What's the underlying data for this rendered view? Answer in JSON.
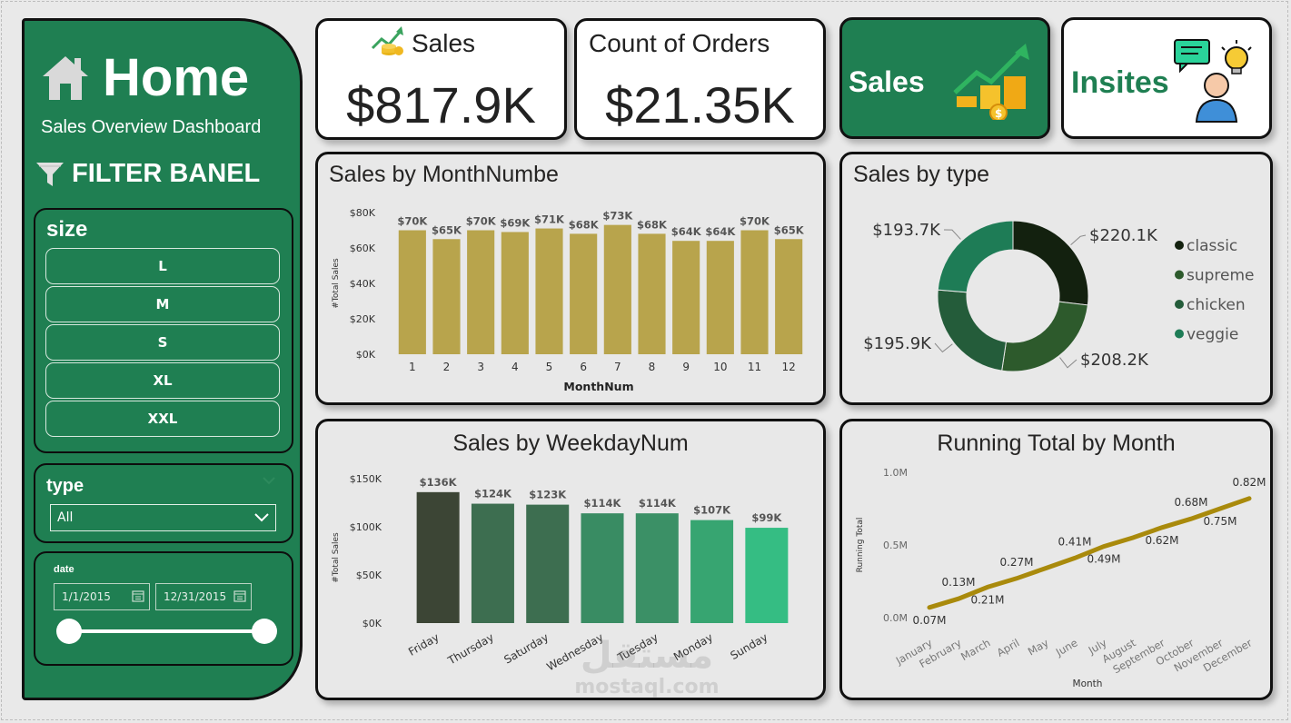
{
  "sidebar": {
    "title": "Home",
    "subtitle": "Sales Overview Dashboard",
    "filter_title": "FILTER BANEL",
    "size_slicer": {
      "title": "size",
      "options": [
        "L",
        "M",
        "S",
        "XL",
        "XXL"
      ]
    },
    "type_slicer": {
      "title": "type",
      "selected": "All"
    },
    "date_slicer": {
      "title": "date",
      "start": "1/1/2015",
      "end": "12/31/2015"
    }
  },
  "kpis": {
    "sales": {
      "label": "Sales",
      "value": "$817.9K"
    },
    "orders": {
      "label": "Count of Orders",
      "value": "$21.35K"
    }
  },
  "nav": {
    "sales": "Sales",
    "insites": "Insites"
  },
  "watermark": {
    "arabic": "مستقل",
    "latin": "mostaql.com"
  },
  "colors": {
    "sidebar": "#1f7f52",
    "bar_month": "#b8a44c",
    "line": "#a98a0c",
    "accent_text": "#1f7f52"
  },
  "chart_data": [
    {
      "id": "month",
      "type": "bar",
      "title": "Sales by MonthNumbe",
      "xlabel": "MonthNum",
      "ylabel": "#Total Sales",
      "categories": [
        "1",
        "2",
        "3",
        "4",
        "5",
        "6",
        "7",
        "8",
        "9",
        "10",
        "11",
        "12"
      ],
      "values": [
        70,
        65,
        70,
        69,
        71,
        68,
        73,
        68,
        64,
        64,
        70,
        65
      ],
      "labels": [
        "$70K",
        "$65K",
        "$70K",
        "$69K",
        "$71K",
        "$68K",
        "$73K",
        "$68K",
        "$64K",
        "$64K",
        "$70K",
        "$65K"
      ],
      "yticks": [
        "$0K",
        "$20K",
        "$40K",
        "$60K",
        "$80K"
      ],
      "ylim": [
        0,
        80
      ]
    },
    {
      "id": "type",
      "type": "pie",
      "title": "Sales by type",
      "categories": [
        "classic",
        "supreme",
        "chicken",
        "veggie"
      ],
      "values": [
        220.1,
        208.2,
        195.9,
        193.7
      ],
      "labels": [
        "$220.1K",
        "$208.2K",
        "$195.9K",
        "$193.7K"
      ],
      "colors": [
        "#13210f",
        "#2d5a2c",
        "#245c3a",
        "#1e7c56"
      ],
      "legend": "right"
    },
    {
      "id": "weekday",
      "type": "bar",
      "title": "Sales by WeekdayNum",
      "ylabel": "#Total Sales",
      "categories": [
        "Friday",
        "Thursday",
        "Saturday",
        "Wednesday",
        "Tuesday",
        "Monday",
        "Sunday"
      ],
      "values": [
        136,
        124,
        123,
        114,
        114,
        107,
        99
      ],
      "labels": [
        "$136K",
        "$124K",
        "$123K",
        "$114K",
        "$114K",
        "$107K",
        "$99K"
      ],
      "colors": [
        "#3c4535",
        "#3d6e50",
        "#3d6e50",
        "#398c63",
        "#3b9066",
        "#37a571",
        "#35bd83"
      ],
      "yticks": [
        "$0K",
        "$50K",
        "$100K",
        "$150K"
      ],
      "ylim": [
        0,
        150
      ]
    },
    {
      "id": "running",
      "type": "line",
      "title": "Running Total by Month",
      "xlabel": "Month",
      "ylabel": "Running Total",
      "categories": [
        "January",
        "February",
        "March",
        "April",
        "May",
        "June",
        "July",
        "August",
        "September",
        "October",
        "November",
        "December"
      ],
      "values": [
        0.07,
        0.13,
        0.21,
        0.27,
        0.34,
        0.41,
        0.49,
        0.55,
        0.62,
        0.68,
        0.75,
        0.82
      ],
      "labels": [
        "0.07M",
        "0.13M",
        "0.21M",
        "0.27M",
        "",
        "0.41M",
        "0.49M",
        "",
        "0.62M",
        "0.68M",
        "0.75M",
        "0.82M"
      ],
      "yticks": [
        "0.0M",
        "0.5M",
        "1.0M"
      ],
      "ylim": [
        0,
        1.0
      ]
    }
  ]
}
